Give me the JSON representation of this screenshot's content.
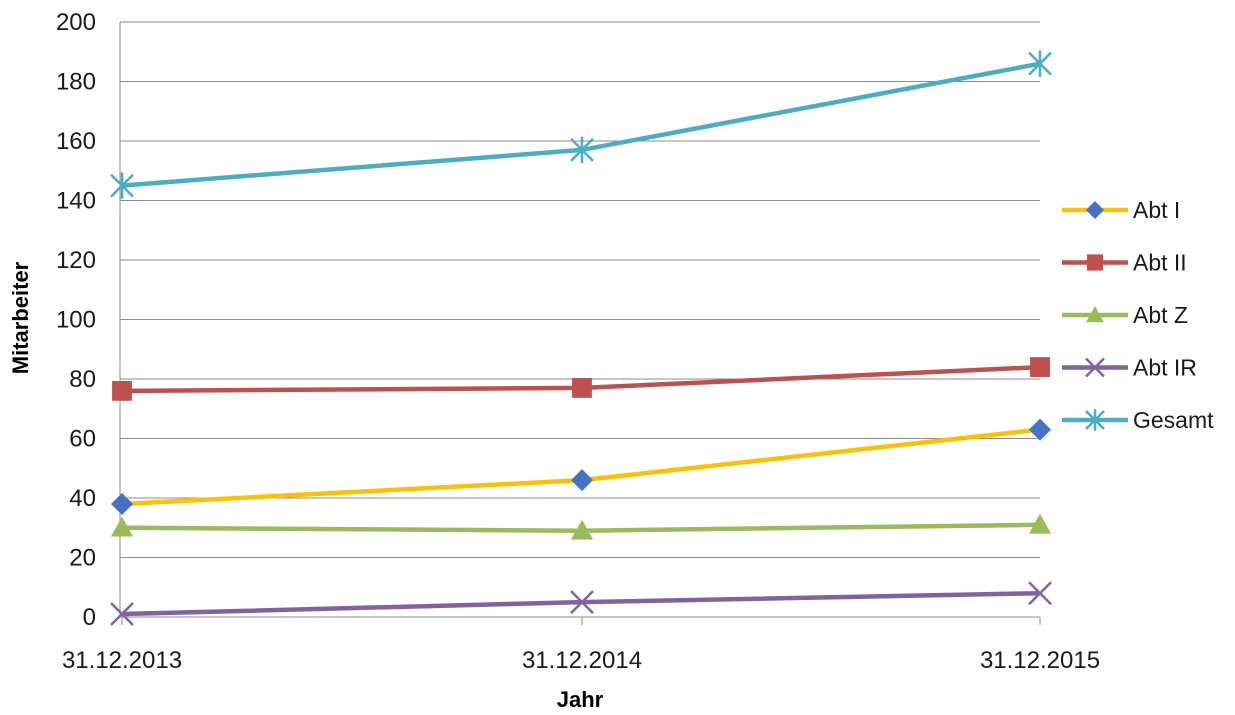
{
  "chart_data": {
    "type": "line",
    "title": "",
    "xlabel": "Jahr",
    "ylabel": "Mitarbeiter",
    "categories": [
      "31.12.2013",
      "31.12.2014",
      "31.12.2015"
    ],
    "ylim": [
      0,
      200
    ],
    "yticks": [
      0,
      20,
      40,
      60,
      80,
      100,
      120,
      140,
      160,
      180,
      200
    ],
    "grid": true,
    "legend": "right",
    "series": [
      {
        "name": "Abt I",
        "values": [
          38,
          46,
          63
        ],
        "color": "#FFC000",
        "marker": "diamond",
        "marker_color": "#4472C4"
      },
      {
        "name": "Abt II",
        "values": [
          76,
          77,
          84
        ],
        "color": "#C0504D",
        "marker": "square",
        "marker_color": "#C0504D"
      },
      {
        "name": "Abt Z",
        "values": [
          30,
          29,
          31
        ],
        "color": "#9BBB59",
        "marker": "triangle",
        "marker_color": "#9BBB59"
      },
      {
        "name": "Abt IR",
        "values": [
          1,
          5,
          8
        ],
        "color": "#8064A2",
        "marker": "x",
        "marker_color": "#8064A2"
      },
      {
        "name": "Gesamt",
        "values": [
          145,
          157,
          186
        ],
        "color": "#4BACC6",
        "marker": "star",
        "marker_color": "#4BACC6"
      }
    ]
  }
}
